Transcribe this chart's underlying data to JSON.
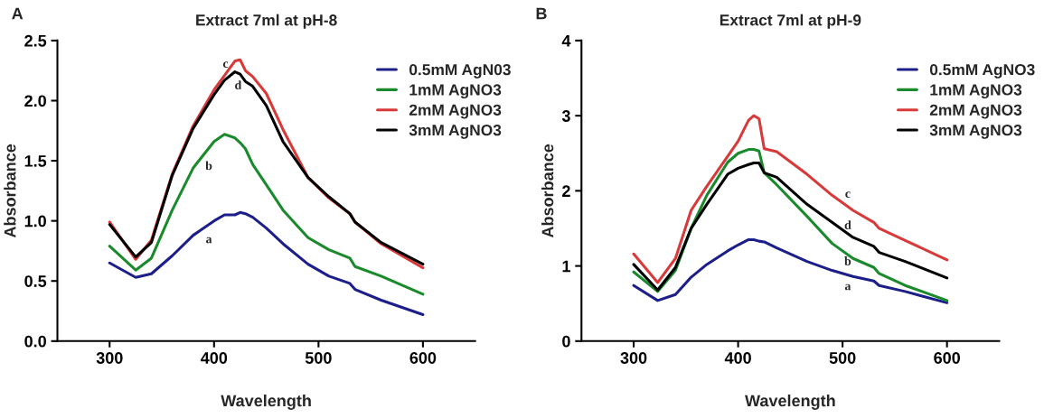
{
  "chart_data": [
    {
      "type": "line",
      "title": "Extract 7ml at pH-8",
      "xlabel": "Wavelength",
      "ylabel": "Absorbance",
      "xlim": [
        250,
        650
      ],
      "xticks": [
        300,
        400,
        500,
        600
      ],
      "ylim": [
        0,
        2.5
      ],
      "yticks": [
        {
          "value": 0,
          "label": "0.0"
        },
        0.5,
        {
          "value": 1,
          "label": "1.0"
        },
        1.5,
        {
          "value": 2,
          "label": "2.0"
        },
        2.5
      ],
      "grid": false,
      "legend": "top right",
      "line_style": "solid",
      "marker": "none",
      "x": [
        300,
        325,
        340,
        360,
        380,
        400,
        410,
        420,
        425,
        430,
        437,
        450,
        466,
        490,
        510,
        530,
        535,
        560,
        600
      ],
      "series": [
        {
          "name": "0.5mM AgN03",
          "color": "#1c1f8a",
          "values": [
            0.65,
            0.53,
            0.56,
            0.71,
            0.88,
            1.0,
            1.05,
            1.05,
            1.07,
            1.06,
            1.03,
            0.94,
            0.81,
            0.64,
            0.54,
            0.48,
            0.43,
            0.34,
            0.22
          ]
        },
        {
          "name": "1mM AgNO3",
          "color": "#1a8a2c",
          "values": [
            0.79,
            0.59,
            0.69,
            1.09,
            1.44,
            1.66,
            1.72,
            1.69,
            1.65,
            1.6,
            1.47,
            1.3,
            1.09,
            0.86,
            0.76,
            0.69,
            0.62,
            0.54,
            0.39
          ]
        },
        {
          "name": "2mM AgNO3",
          "color": "#d83a3a",
          "values": [
            0.99,
            0.68,
            0.84,
            1.39,
            1.79,
            2.09,
            2.21,
            2.33,
            2.34,
            2.25,
            2.2,
            2.06,
            1.76,
            1.36,
            1.19,
            1.06,
            0.99,
            0.81,
            0.61
          ]
        },
        {
          "name": "3mM AgNO3",
          "color": "#000000",
          "values": [
            0.97,
            0.7,
            0.82,
            1.38,
            1.77,
            2.05,
            2.17,
            2.24,
            2.22,
            2.16,
            2.12,
            1.96,
            1.66,
            1.36,
            1.2,
            1.06,
            0.99,
            0.82,
            0.64
          ]
        }
      ],
      "annotations": [
        "A",
        "a",
        "b",
        "c",
        "d"
      ]
    },
    {
      "type": "line",
      "title": "Extract 7ml at pH-9",
      "xlabel": "Wavelength",
      "ylabel": "Absorbance",
      "xlim": [
        250,
        650
      ],
      "xticks": [
        300,
        400,
        500,
        600
      ],
      "ylim": [
        0,
        4
      ],
      "yticks": [
        0,
        1,
        2,
        3,
        4
      ],
      "grid": false,
      "legend": "top right",
      "line_style": "solid",
      "marker": "none",
      "x": [
        300,
        323,
        340,
        355,
        370,
        390,
        400,
        410,
        415,
        420,
        425,
        437,
        466,
        490,
        510,
        530,
        535,
        560,
        600
      ],
      "series": [
        {
          "name": "0.5mM AgNO3",
          "color": "#1c1f8a",
          "values": [
            0.74,
            0.54,
            0.62,
            0.85,
            1.02,
            1.2,
            1.28,
            1.35,
            1.35,
            1.33,
            1.32,
            1.24,
            1.06,
            0.94,
            0.86,
            0.8,
            0.74,
            0.66,
            0.51
          ]
        },
        {
          "name": "1mM AgNO3",
          "color": "#1a8a2c",
          "values": [
            0.92,
            0.66,
            0.94,
            1.5,
            1.94,
            2.38,
            2.5,
            2.55,
            2.55,
            2.53,
            2.24,
            2.08,
            1.66,
            1.3,
            1.1,
            0.98,
            0.9,
            0.74,
            0.54
          ]
        },
        {
          "name": "2mM AgNO3",
          "color": "#d83a3a",
          "values": [
            1.16,
            0.78,
            1.1,
            1.74,
            2.06,
            2.46,
            2.66,
            2.94,
            3.0,
            2.96,
            2.56,
            2.52,
            2.22,
            1.94,
            1.74,
            1.58,
            1.5,
            1.34,
            1.08
          ]
        },
        {
          "name": "3mM AgNO3",
          "color": "#000000",
          "values": [
            1.02,
            0.68,
            0.98,
            1.5,
            1.82,
            2.22,
            2.3,
            2.35,
            2.37,
            2.37,
            2.24,
            2.18,
            1.82,
            1.58,
            1.38,
            1.26,
            1.18,
            1.06,
            0.84
          ]
        }
      ],
      "annotations": [
        "B",
        "a",
        "b",
        "c",
        "d"
      ]
    }
  ]
}
